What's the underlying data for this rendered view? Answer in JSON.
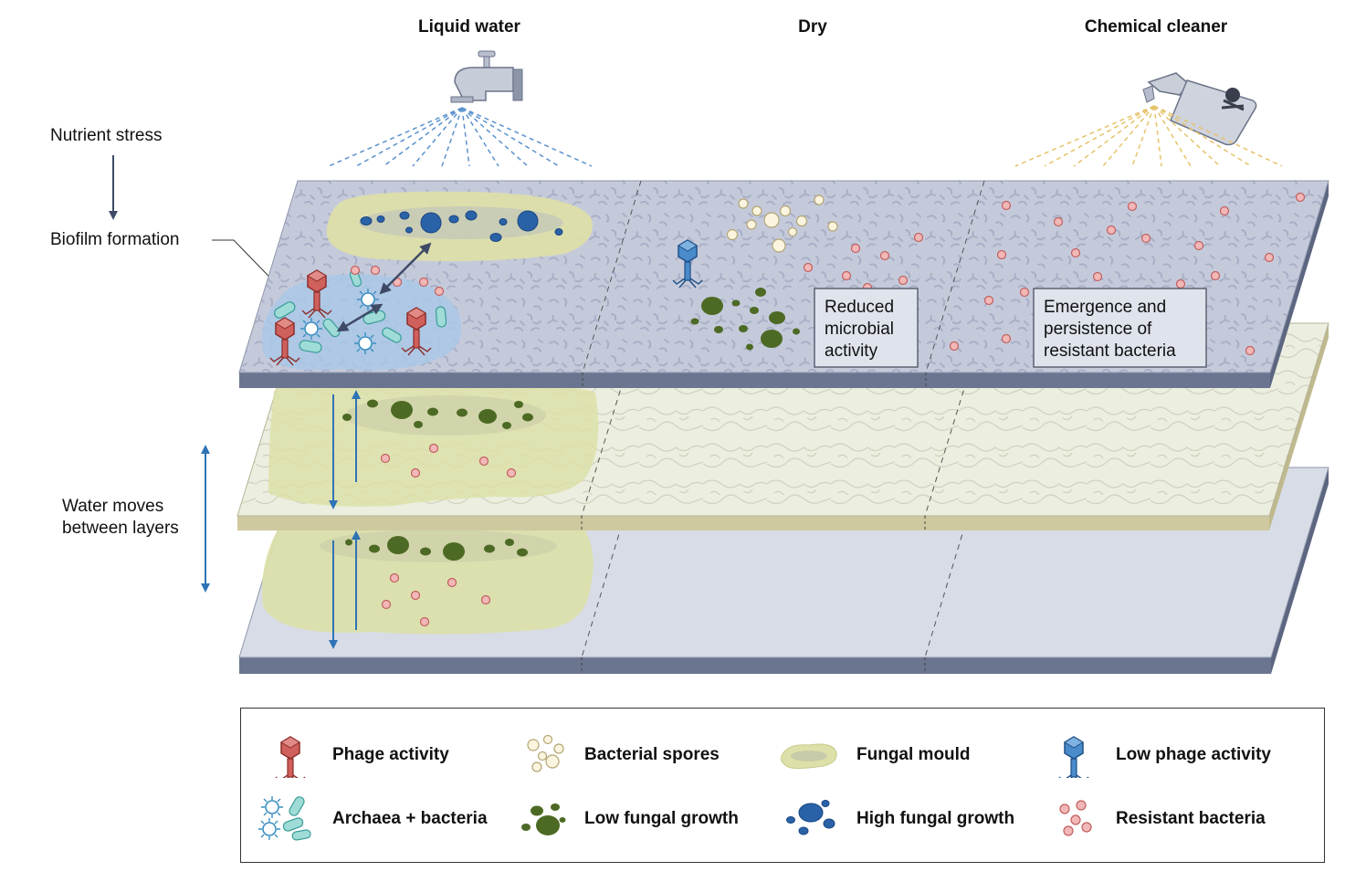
{
  "columns": {
    "liquid_water": "Liquid water",
    "dry": "Dry",
    "chemical_cleaner": "Chemical cleaner"
  },
  "side_labels": {
    "nutrient_stress": "Nutrient stress",
    "biofilm_formation": "Biofilm formation",
    "water_moves_line1": "Water moves",
    "water_moves_line2": "between layers"
  },
  "callouts": {
    "dry_line1": "Reduced",
    "dry_line2": "microbial",
    "dry_line3": "activity",
    "chem_line1": "Emergence and",
    "chem_line2": "persistence of",
    "chem_line3": "resistant bacteria"
  },
  "legend": {
    "phage_activity": "Phage activity",
    "bacterial_spores": "Bacterial spores",
    "fungal_mould": "Fungal mould",
    "low_phage_activity": "Low phage activity",
    "archaea_bacteria": "Archaea + bacteria",
    "low_fungal_growth": "Low fungal growth",
    "high_fungal_growth": "High fungal growth",
    "resistant_bacteria": "Resistant bacteria"
  },
  "colors": {
    "phage_red": "#c8504e",
    "phage_blue": "#3a7bbf",
    "high_fungal_blue": "#2a62a8",
    "low_fungal_green": "#4d6a24",
    "resistant_pink": "#f2b7b7",
    "spore_cream": "#fbf5df",
    "mould_yellow": "#dfe3a6",
    "archaea_teal": "#9fdcd7",
    "top_layer": "#c5cadb",
    "middle_layer": "#eceee0",
    "bottom_layer": "#d8dce6",
    "water_arrow": "#2f73b5"
  }
}
